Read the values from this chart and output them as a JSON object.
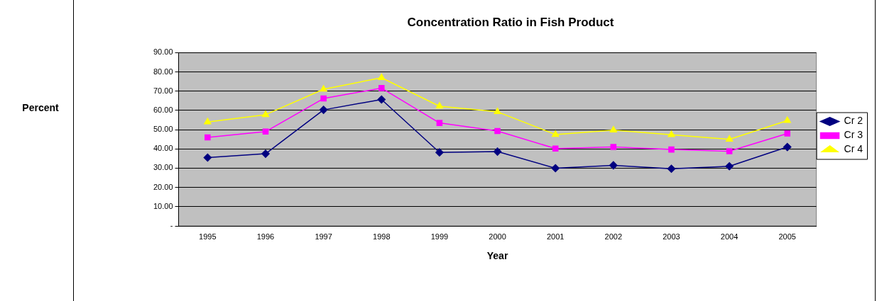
{
  "chart_data": {
    "type": "line",
    "title": "Concentration Ratio in Fish Product",
    "xlabel": "Year",
    "annotations": [
      "Percent"
    ],
    "categories": [
      "1995",
      "1996",
      "1997",
      "1998",
      "1999",
      "2000",
      "2001",
      "2002",
      "2003",
      "2004",
      "2005"
    ],
    "series": [
      {
        "name": "Cr 2",
        "color": "#000080",
        "marker": "diamond",
        "values": [
          35.5,
          37.5,
          60.3,
          65.7,
          38.2,
          38.6,
          30.0,
          31.5,
          29.7,
          31.0,
          41.0
        ]
      },
      {
        "name": "Cr 3",
        "color": "#ff00ff",
        "marker": "square",
        "values": [
          46.0,
          49.0,
          66.2,
          71.6,
          53.5,
          49.3,
          40.2,
          41.0,
          39.7,
          38.8,
          48.0
        ]
      },
      {
        "name": "Cr 4",
        "color": "#ffff00",
        "marker": "triangle",
        "values": [
          54.0,
          57.8,
          71.0,
          77.0,
          62.2,
          59.3,
          47.5,
          49.8,
          47.4,
          45.0,
          54.7
        ]
      }
    ],
    "ylim": [
      0,
      90
    ],
    "yticks": [
      {
        "value": 0,
        "label": "-"
      },
      {
        "value": 10,
        "label": "10.00"
      },
      {
        "value": 20,
        "label": "20.00"
      },
      {
        "value": 30,
        "label": "30.00"
      },
      {
        "value": 40,
        "label": "40.00"
      },
      {
        "value": 50,
        "label": "50.00"
      },
      {
        "value": 60,
        "label": "60.00"
      },
      {
        "value": 70,
        "label": "70.00"
      },
      {
        "value": 80,
        "label": "80.00"
      },
      {
        "value": 90,
        "label": "90.00"
      }
    ],
    "grid": "y",
    "legend": "right",
    "line_style": "solid"
  }
}
